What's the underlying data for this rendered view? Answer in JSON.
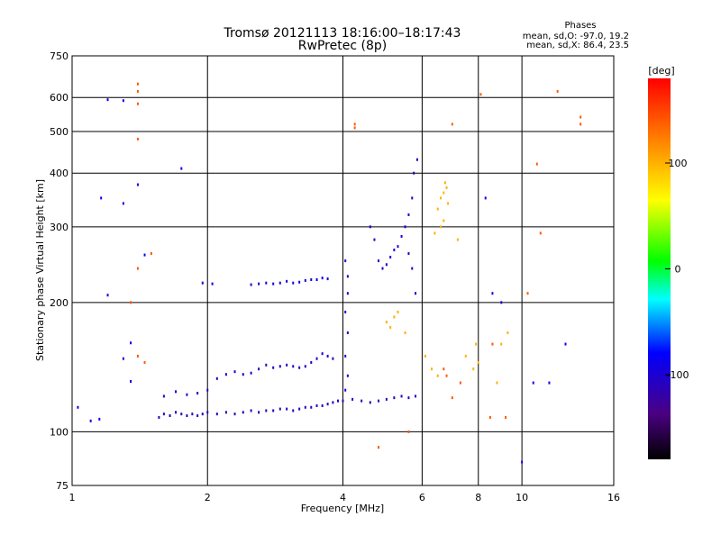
{
  "chart_data": {
    "type": "scatter",
    "title": "Tromsø 20121113 18:16:00–18:17:43",
    "subtitle": "RwPretec (8p)",
    "stats": {
      "heading": "Phases",
      "line_o": "mean, sd,O: -97.0, 19.2",
      "line_x": "mean, sd,X:  86.4, 23.5"
    },
    "xlabel": "Frequency [MHz]",
    "ylabel": "Stationary phase Virtual Height [km]",
    "x_scale": "log",
    "y_scale": "log",
    "xlim": [
      1,
      16
    ],
    "ylim": [
      75,
      750
    ],
    "x_ticks": [
      1,
      2,
      4,
      6,
      8,
      10,
      16
    ],
    "y_ticks": [
      75,
      100,
      200,
      300,
      400,
      500,
      600,
      750
    ],
    "grid_x": [
      2,
      4,
      6,
      8,
      10
    ],
    "grid_y": [
      100,
      200,
      300,
      400,
      500,
      600
    ],
    "colorbar": {
      "label": "[deg]",
      "ticks": [
        100,
        0,
        -100
      ],
      "range": [
        -180,
        180
      ]
    },
    "series": [
      {
        "key": "F-layer trace low",
        "color_deg": -110,
        "points": [
          [
            1.56,
            108
          ],
          [
            1.6,
            110
          ],
          [
            1.65,
            109
          ],
          [
            1.7,
            111
          ],
          [
            1.75,
            110
          ],
          [
            1.8,
            109
          ],
          [
            1.85,
            110
          ],
          [
            1.9,
            109
          ],
          [
            1.95,
            110
          ],
          [
            2.0,
            111
          ],
          [
            2.1,
            110
          ],
          [
            2.2,
            111
          ],
          [
            2.3,
            110
          ],
          [
            2.4,
            111
          ],
          [
            2.5,
            112
          ],
          [
            2.6,
            111
          ],
          [
            2.7,
            112
          ],
          [
            2.8,
            112
          ],
          [
            2.9,
            113
          ],
          [
            3.0,
            113
          ],
          [
            3.1,
            112
          ],
          [
            3.2,
            113
          ],
          [
            3.3,
            114
          ],
          [
            3.4,
            114
          ],
          [
            3.5,
            115
          ],
          [
            3.6,
            115
          ],
          [
            3.7,
            116
          ],
          [
            3.8,
            117
          ],
          [
            3.9,
            118
          ],
          [
            4.0,
            118
          ],
          [
            4.2,
            119
          ],
          [
            4.4,
            118
          ],
          [
            4.6,
            117
          ],
          [
            4.8,
            118
          ],
          [
            5.0,
            119
          ],
          [
            5.2,
            120
          ],
          [
            5.4,
            121
          ],
          [
            5.6,
            120
          ],
          [
            5.8,
            121
          ]
        ]
      },
      {
        "key": "F-layer trace high",
        "color_deg": -105,
        "points": [
          [
            1.6,
            121
          ],
          [
            1.7,
            124
          ],
          [
            1.8,
            122
          ],
          [
            1.9,
            123
          ],
          [
            2.0,
            125
          ],
          [
            2.1,
            133
          ],
          [
            2.2,
            136
          ],
          [
            2.3,
            138
          ],
          [
            2.4,
            136
          ],
          [
            2.5,
            137
          ],
          [
            2.6,
            140
          ],
          [
            2.7,
            143
          ],
          [
            2.8,
            141
          ],
          [
            2.9,
            142
          ],
          [
            3.0,
            143
          ],
          [
            3.1,
            142
          ],
          [
            3.2,
            141
          ],
          [
            3.3,
            142
          ],
          [
            3.4,
            145
          ],
          [
            3.5,
            148
          ],
          [
            3.6,
            152
          ],
          [
            3.7,
            150
          ],
          [
            3.8,
            148
          ]
        ]
      },
      {
        "key": "upper trace",
        "color_deg": -95,
        "points": [
          [
            1.95,
            222
          ],
          [
            2.05,
            221
          ],
          [
            2.5,
            220
          ],
          [
            2.6,
            221
          ],
          [
            2.7,
            222
          ],
          [
            2.8,
            221
          ],
          [
            2.9,
            222
          ],
          [
            3.0,
            224
          ],
          [
            3.1,
            222
          ],
          [
            3.2,
            223
          ],
          [
            3.3,
            225
          ],
          [
            3.4,
            226
          ],
          [
            3.5,
            226
          ],
          [
            3.6,
            228
          ],
          [
            3.7,
            227
          ]
        ]
      },
      {
        "key": "cusp vertical",
        "color_deg": -100,
        "points": [
          [
            4.05,
            250
          ],
          [
            4.1,
            230
          ],
          [
            4.1,
            210
          ],
          [
            4.05,
            190
          ],
          [
            4.1,
            170
          ],
          [
            4.05,
            150
          ],
          [
            4.1,
            135
          ],
          [
            4.05,
            125
          ],
          [
            4.6,
            300
          ],
          [
            4.7,
            280
          ],
          [
            4.8,
            250
          ],
          [
            4.9,
            240
          ],
          [
            5.0,
            245
          ],
          [
            5.1,
            255
          ],
          [
            5.2,
            265
          ],
          [
            5.3,
            270
          ],
          [
            5.4,
            285
          ],
          [
            5.5,
            300
          ],
          [
            5.6,
            320
          ],
          [
            5.7,
            350
          ],
          [
            5.75,
            400
          ],
          [
            5.85,
            430
          ],
          [
            5.6,
            260
          ],
          [
            5.7,
            240
          ],
          [
            5.8,
            210
          ]
        ]
      },
      {
        "key": "scattered low",
        "color_deg": -90,
        "points": [
          [
            1.03,
            114
          ],
          [
            1.1,
            106
          ],
          [
            1.15,
            107
          ],
          [
            1.2,
            208
          ],
          [
            1.3,
            148
          ],
          [
            1.35,
            161
          ],
          [
            1.35,
            131
          ],
          [
            1.4,
            376
          ],
          [
            1.45,
            258
          ],
          [
            1.16,
            350
          ],
          [
            1.3,
            340
          ],
          [
            1.2,
            593
          ],
          [
            1.3,
            590
          ],
          [
            1.75,
            410
          ],
          [
            10.0,
            85
          ],
          [
            8.3,
            350
          ],
          [
            8.6,
            210
          ],
          [
            9.0,
            200
          ],
          [
            10.6,
            130
          ],
          [
            11.5,
            130
          ],
          [
            12.5,
            160
          ]
        ]
      },
      {
        "key": "yellow X trace",
        "color_deg": 100,
        "points": [
          [
            6.5,
            330
          ],
          [
            6.6,
            350
          ],
          [
            6.7,
            360
          ],
          [
            6.75,
            380
          ],
          [
            6.8,
            370
          ],
          [
            6.85,
            340
          ],
          [
            6.7,
            310
          ],
          [
            6.6,
            300
          ],
          [
            6.4,
            290
          ],
          [
            7.2,
            280
          ],
          [
            5.0,
            180
          ],
          [
            5.1,
            175
          ],
          [
            5.2,
            185
          ],
          [
            5.3,
            190
          ],
          [
            5.5,
            170
          ],
          [
            6.1,
            150
          ],
          [
            6.3,
            140
          ],
          [
            6.5,
            135
          ],
          [
            7.5,
            150
          ],
          [
            7.8,
            140
          ],
          [
            7.9,
            160
          ],
          [
            8.0,
            145
          ],
          [
            8.8,
            130
          ],
          [
            9.0,
            160
          ],
          [
            9.3,
            170
          ]
        ]
      },
      {
        "key": "scattered orange",
        "color_deg": 140,
        "points": [
          [
            1.4,
            645
          ],
          [
            1.4,
            620
          ],
          [
            1.4,
            580
          ],
          [
            1.4,
            480
          ],
          [
            4.25,
            520
          ],
          [
            4.25,
            510
          ],
          [
            8.1,
            610
          ],
          [
            7.0,
            520
          ],
          [
            12.0,
            620
          ],
          [
            13.5,
            540
          ],
          [
            13.5,
            520
          ],
          [
            10.8,
            420
          ],
          [
            11.0,
            290
          ],
          [
            10.3,
            210
          ],
          [
            6.7,
            140
          ],
          [
            6.8,
            135
          ],
          [
            7.0,
            120
          ],
          [
            7.3,
            130
          ],
          [
            8.6,
            160
          ],
          [
            1.5,
            260
          ],
          [
            1.4,
            240
          ],
          [
            1.35,
            200
          ],
          [
            1.4,
            150
          ],
          [
            1.45,
            145
          ],
          [
            4.8,
            92
          ],
          [
            5.6,
            100
          ],
          [
            8.5,
            108
          ],
          [
            9.2,
            108
          ]
        ]
      }
    ]
  }
}
